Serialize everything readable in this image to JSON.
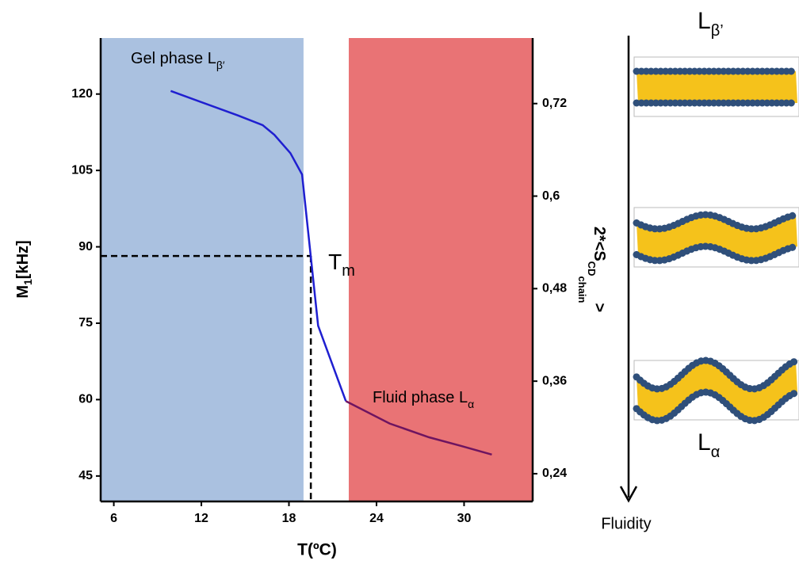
{
  "chart_data": {
    "type": "line",
    "xlabel": "T(ºC)",
    "ylabel": "M",
    "ylabel_sub": "1",
    "ylabel_rest": "[kHz]",
    "y2label": "2*<S",
    "y2label_sub": "CD",
    "y2label_sub2": "chain",
    "y2label_end": ">",
    "xlim": [
      5.1,
      34.7
    ],
    "xticks": [
      6,
      12,
      18,
      24,
      30
    ],
    "ylim": [
      40,
      131
    ],
    "yticks": [
      45,
      60,
      75,
      90,
      105,
      120
    ],
    "y2lim": [
      0.204,
      0.805
    ],
    "y2ticks": [
      {
        "value": 0.24,
        "label": "0,24"
      },
      {
        "value": 0.36,
        "label": "0,36"
      },
      {
        "value": 0.48,
        "label": "0,48"
      },
      {
        "value": 0.6,
        "label": "0,6"
      },
      {
        "value": 0.72,
        "label": "0,72"
      }
    ],
    "regions": [
      {
        "x0": 5.1,
        "x1": 19.0,
        "color": "#8eacd6",
        "label": "Gel phase L",
        "label_sub": "β′"
      },
      {
        "x0": 22.1,
        "x1": 34.7,
        "color": "#e86c6e",
        "label": "Fluid phase L",
        "label_sub": "α"
      }
    ],
    "series": [
      {
        "color": "#1f1fd0",
        "x": [
          9.9,
          14.5,
          16.2,
          17.0,
          18.1,
          18.9,
          20.0,
          21.9
        ],
        "values": [
          120.6,
          115.8,
          113.9,
          112,
          108.4,
          104.2,
          74.5,
          59.7
        ]
      },
      {
        "color": "#6e1460",
        "x": [
          21.9,
          24.9,
          27.6,
          29.8,
          31.9
        ],
        "values": [
          59.7,
          55.3,
          52.6,
          50.9,
          49.2
        ]
      }
    ],
    "tm": {
      "x": 19.5,
      "y": 88.2,
      "label": "T",
      "label_sub": "m"
    }
  },
  "illustration": {
    "top_label": "L",
    "top_sub": "β’",
    "bottom_label": "L",
    "bottom_sub": "α",
    "arrow_label": "Fluidity"
  }
}
